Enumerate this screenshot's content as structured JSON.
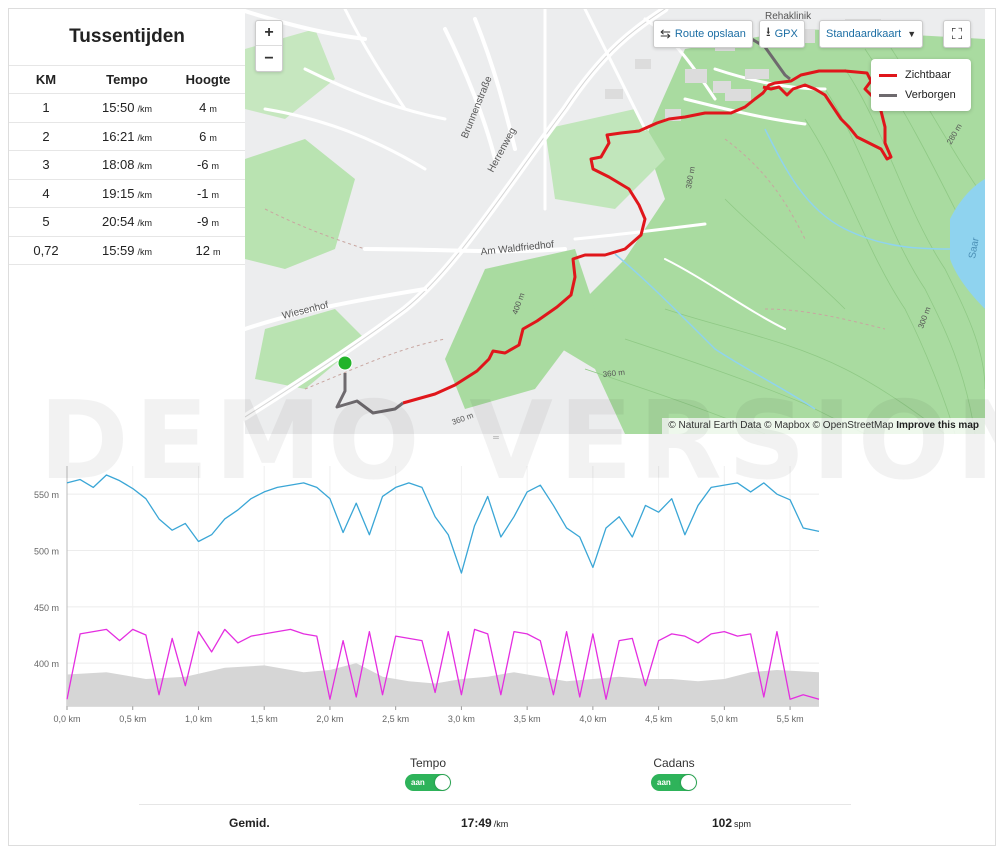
{
  "splits": {
    "title": "Tussentijden",
    "headers": {
      "km": "KM",
      "tempo": "Tempo",
      "hoogte": "Hoogte"
    },
    "tempo_unit": "/km",
    "hoogte_unit": "m",
    "rows": [
      {
        "km": "1",
        "tempo": "15:50",
        "hoogte": "4"
      },
      {
        "km": "2",
        "tempo": "16:21",
        "hoogte": "6"
      },
      {
        "km": "3",
        "tempo": "18:08",
        "hoogte": "-6"
      },
      {
        "km": "4",
        "tempo": "19:15",
        "hoogte": "-1"
      },
      {
        "km": "5",
        "tempo": "20:54",
        "hoogte": "-9"
      },
      {
        "km": "0,72",
        "tempo": "15:59",
        "hoogte": "12"
      }
    ]
  },
  "map": {
    "zoom_in": "+",
    "zoom_out": "−",
    "buttons": {
      "save_route": "Route opslaan",
      "gpx": "GPX",
      "style": "Standaardkaart"
    },
    "legend": [
      {
        "label": "Zichtbaar",
        "color": "#e0161b"
      },
      {
        "label": "Verborgen",
        "color": "#6e6a6e"
      }
    ],
    "attribution": "© Natural Earth Data © Mapbox © OpenStreetMap",
    "improve": "Improve this map",
    "labels": {
      "rehaklinik": "Rehaklinik",
      "brunnenstrasse": "Brunnenstraße",
      "herrenweg": "Herrenweg",
      "waldfriedhof": "Am Waldfriedhof",
      "wiesenhof": "Wiesenhof",
      "c380": "380 m",
      "c400": "400 m",
      "c360a": "360 m",
      "c360b": "360 m",
      "c280": "280 m",
      "c300": "300 m",
      "saar": "Saar"
    },
    "colors": {
      "route": "#e0161b",
      "hidden": "#6e6a6e",
      "start": "#22b32a",
      "forest": "#a9dba0",
      "river": "#8fd3ef"
    }
  },
  "chart_data": {
    "type": "line",
    "x_unit": "km",
    "x_ticks": [
      "0,0 km",
      "0,5 km",
      "1,0 km",
      "1,5 km",
      "2,0 km",
      "2,5 km",
      "3,0 km",
      "3,5 km",
      "4,0 km",
      "4,5 km",
      "5,0 km",
      "5,5 km"
    ],
    "y_ticks": [
      "550 m",
      "500 m",
      "450 m",
      "400 m"
    ],
    "xlim": [
      0,
      5.72
    ],
    "ylim": [
      362,
      575
    ],
    "grid": true,
    "series": [
      {
        "color": "#3aa6d6",
        "x": [
          0,
          0.1,
          0.2,
          0.3,
          0.4,
          0.5,
          0.6,
          0.7,
          0.8,
          0.9,
          1.0,
          1.1,
          1.2,
          1.3,
          1.4,
          1.5,
          1.6,
          1.7,
          1.8,
          1.9,
          2.0,
          2.1,
          2.2,
          2.3,
          2.4,
          2.5,
          2.6,
          2.7,
          2.8,
          2.9,
          3.0,
          3.1,
          3.2,
          3.3,
          3.4,
          3.5,
          3.6,
          3.7,
          3.8,
          3.9,
          4.0,
          4.1,
          4.2,
          4.3,
          4.4,
          4.5,
          4.6,
          4.7,
          4.8,
          4.9,
          5.0,
          5.1,
          5.2,
          5.3,
          5.4,
          5.5,
          5.6,
          5.72
        ],
        "values": [
          560,
          563,
          556,
          567,
          562,
          555,
          546,
          528,
          518,
          524,
          508,
          514,
          528,
          536,
          546,
          552,
          556,
          558,
          560,
          556,
          546,
          516,
          542,
          514,
          548,
          556,
          560,
          556,
          530,
          514,
          480,
          522,
          548,
          512,
          530,
          552,
          558,
          540,
          520,
          512,
          485,
          520,
          530,
          512,
          540,
          534,
          546,
          514,
          540,
          556,
          558,
          560,
          552,
          560,
          550,
          545,
          520,
          517
        ]
      },
      {
        "color": "#e42ee0",
        "x": [
          0,
          0.1,
          0.2,
          0.3,
          0.4,
          0.5,
          0.6,
          0.7,
          0.8,
          0.9,
          1.0,
          1.1,
          1.2,
          1.3,
          1.4,
          1.5,
          1.6,
          1.7,
          1.8,
          1.9,
          2.0,
          2.1,
          2.2,
          2.3,
          2.4,
          2.5,
          2.6,
          2.7,
          2.8,
          2.9,
          3.0,
          3.1,
          3.2,
          3.3,
          3.4,
          3.5,
          3.6,
          3.7,
          3.8,
          3.9,
          4.0,
          4.1,
          4.2,
          4.3,
          4.4,
          4.5,
          4.6,
          4.7,
          4.8,
          4.9,
          5.0,
          5.1,
          5.2,
          5.3,
          5.4,
          5.5,
          5.6,
          5.72
        ],
        "values": [
          368,
          426,
          428,
          430,
          420,
          430,
          425,
          372,
          422,
          380,
          428,
          410,
          430,
          418,
          424,
          426,
          428,
          430,
          426,
          424,
          368,
          420,
          370,
          428,
          372,
          424,
          422,
          420,
          374,
          428,
          372,
          430,
          426,
          372,
          428,
          426,
          420,
          372,
          428,
          370,
          426,
          368,
          420,
          422,
          380,
          420,
          426,
          424,
          418,
          426,
          428,
          424,
          426,
          370,
          428,
          368,
          372,
          368
        ]
      },
      {
        "color": "#d6d6d6",
        "x": [
          0,
          0.3,
          0.6,
          0.9,
          1.2,
          1.5,
          1.8,
          2.0,
          2.2,
          2.4,
          2.6,
          2.8,
          3.0,
          3.2,
          3.4,
          3.6,
          3.8,
          4.0,
          4.2,
          4.4,
          4.6,
          4.8,
          5.0,
          5.2,
          5.4,
          5.72
        ],
        "values": [
          390,
          392,
          386,
          388,
          396,
          398,
          392,
          394,
          400,
          388,
          384,
          382,
          386,
          388,
          392,
          388,
          384,
          386,
          388,
          386,
          386,
          384,
          386,
          392,
          394,
          392
        ]
      }
    ]
  },
  "summary": {
    "tempo_label": "Tempo",
    "cadans_label": "Cadans",
    "toggle_text": "aan",
    "avg_label": "Gemid.",
    "avg_tempo": "17:49",
    "avg_tempo_unit": "/km",
    "avg_cadans": "102",
    "avg_cadans_unit": "spm"
  },
  "watermark": "DEMO VERSION"
}
